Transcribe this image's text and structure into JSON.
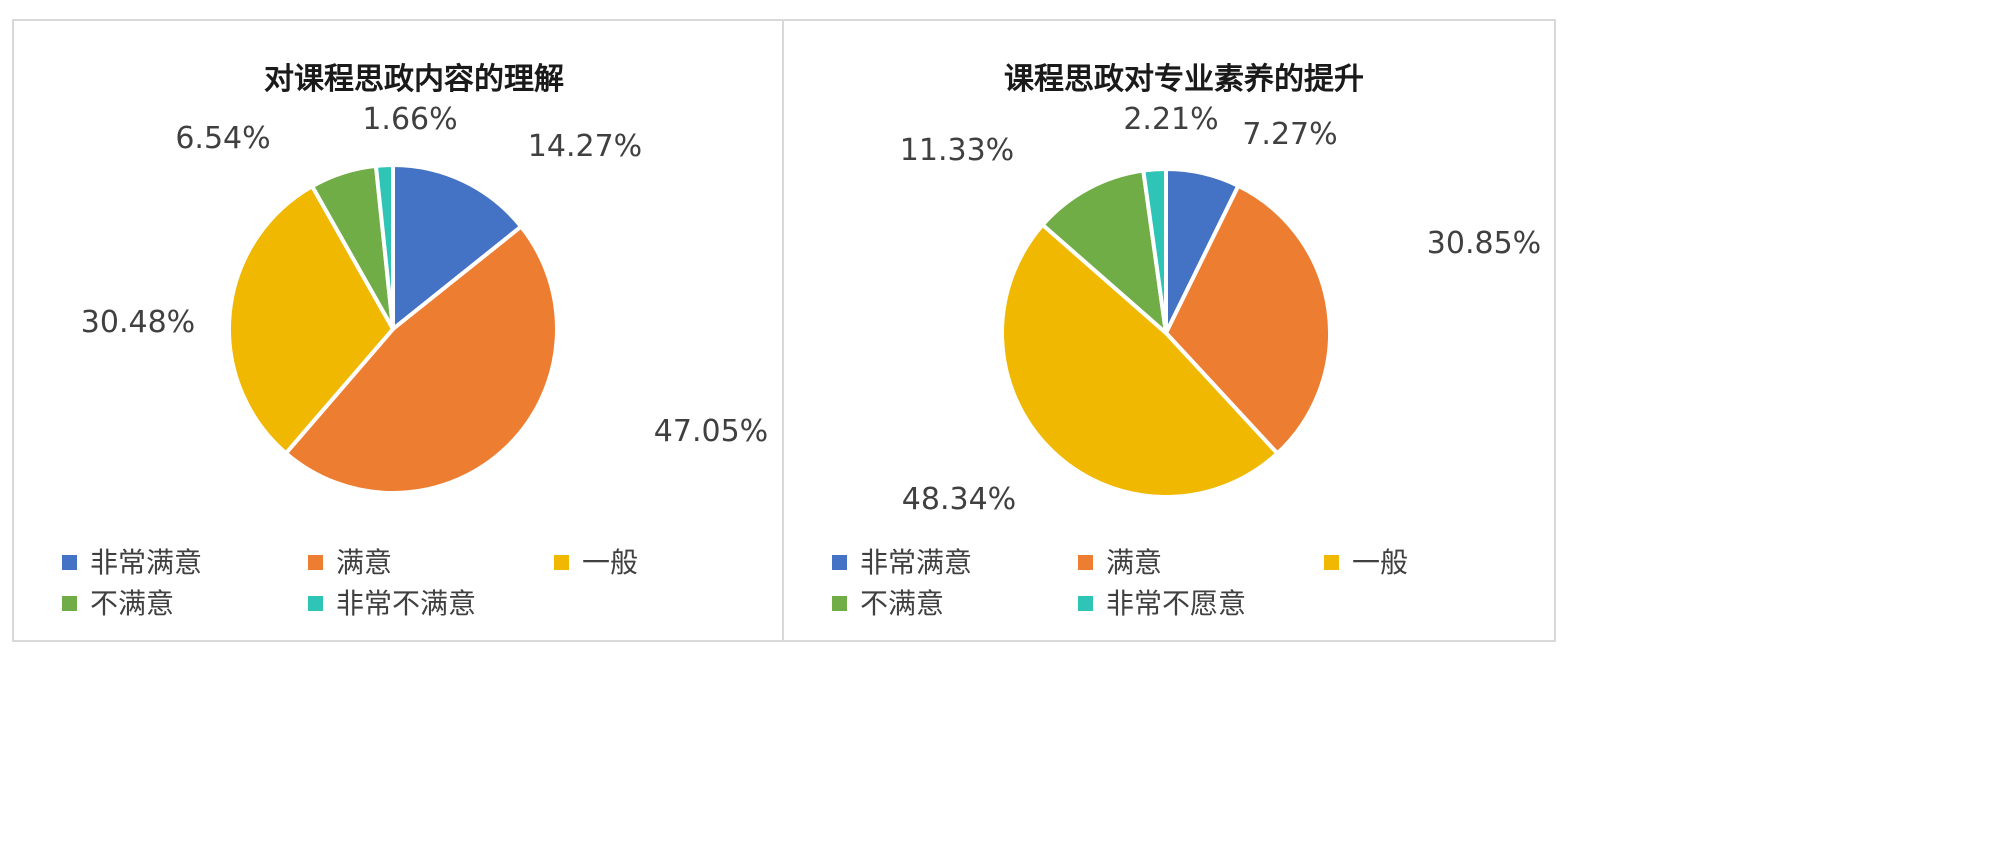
{
  "chart_data": [
    {
      "type": "pie",
      "title": "对课程思政内容的理解",
      "categories": [
        "非常满意",
        "满意",
        "一般",
        "不满意",
        "非常不满意"
      ],
      "values": [
        14.27,
        47.05,
        30.48,
        6.54,
        1.66
      ],
      "value_labels": [
        "14.27%",
        "47.05%",
        "30.48%",
        "6.54%",
        "1.66%"
      ],
      "colors": [
        "#4472c4",
        "#ed7d31",
        "#f0b800",
        "#70ad47",
        "#2ec4b6"
      ],
      "legend_position": "bottom"
    },
    {
      "type": "pie",
      "title": "课程思政对专业素养的提升",
      "categories": [
        "非常满意",
        "满意",
        "一般",
        "不满意",
        "非常不愿意"
      ],
      "values": [
        7.27,
        30.85,
        48.34,
        11.33,
        2.21
      ],
      "value_labels": [
        "7.27%",
        "30.85%",
        "48.34%",
        "11.33%",
        "2.21%"
      ],
      "colors": [
        "#4472c4",
        "#ed7d31",
        "#f0b800",
        "#70ad47",
        "#2ec4b6"
      ],
      "legend_position": "bottom"
    }
  ]
}
